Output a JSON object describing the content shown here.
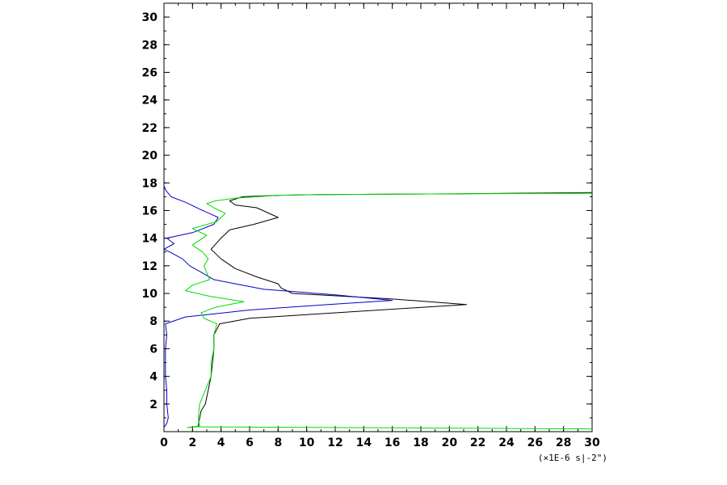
{
  "chart_data": {
    "type": "line",
    "title": "",
    "xlabel": "",
    "ylabel": "",
    "x_unit_label": "(×1E-6 s|-2\")",
    "xlim": [
      0,
      30
    ],
    "ylim": [
      0,
      31
    ],
    "grid": false,
    "x_ticks": [
      0,
      2,
      4,
      6,
      8,
      10,
      12,
      14,
      16,
      18,
      20,
      22,
      24,
      26,
      28,
      30
    ],
    "y_ticks": [
      2,
      4,
      6,
      8,
      10,
      12,
      14,
      16,
      18,
      20,
      22,
      24,
      26,
      28,
      30
    ],
    "series": [
      {
        "color": "#000000",
        "points": [
          [
            1.8,
            0.3
          ],
          [
            2.4,
            0.4
          ],
          [
            2.5,
            1.0
          ],
          [
            2.6,
            1.5
          ],
          [
            2.9,
            2.0
          ],
          [
            3.1,
            3.0
          ],
          [
            3.3,
            4.0
          ],
          [
            3.4,
            5.0
          ],
          [
            3.5,
            6.0
          ],
          [
            3.5,
            7.0
          ],
          [
            3.9,
            7.8
          ],
          [
            6.0,
            8.2
          ],
          [
            12.0,
            8.6
          ],
          [
            21.2,
            9.2
          ],
          [
            16.0,
            9.6
          ],
          [
            9.0,
            10.0
          ],
          [
            8.2,
            10.4
          ],
          [
            8.0,
            10.7
          ],
          [
            6.5,
            11.2
          ],
          [
            5.0,
            11.8
          ],
          [
            4.0,
            12.5
          ],
          [
            3.3,
            13.2
          ],
          [
            3.9,
            13.9
          ],
          [
            4.6,
            14.6
          ],
          [
            6.3,
            15.0
          ],
          [
            8.0,
            15.5
          ],
          [
            6.5,
            16.2
          ],
          [
            5.0,
            16.4
          ],
          [
            4.6,
            16.7
          ],
          [
            5.5,
            17.0
          ],
          [
            8.0,
            17.1
          ],
          [
            11.0,
            17.15
          ],
          [
            20.0,
            17.2
          ],
          [
            30.0,
            17.3
          ]
        ]
      },
      {
        "color": "#0000cc",
        "points": [
          [
            0.0,
            0.3
          ],
          [
            0.2,
            0.6
          ],
          [
            0.3,
            1.0
          ],
          [
            0.2,
            2.0
          ],
          [
            0.2,
            3.0
          ],
          [
            0.1,
            4.0
          ],
          [
            0.1,
            5.0
          ],
          [
            0.1,
            6.0
          ],
          [
            0.2,
            7.0
          ],
          [
            0.1,
            7.8
          ],
          [
            1.5,
            8.3
          ],
          [
            6.0,
            8.8
          ],
          [
            11.5,
            9.2
          ],
          [
            16.0,
            9.5
          ],
          [
            12.0,
            9.9
          ],
          [
            7.0,
            10.3
          ],
          [
            5.0,
            10.7
          ],
          [
            3.5,
            11.0
          ],
          [
            3.0,
            11.3
          ],
          [
            1.8,
            12.0
          ],
          [
            1.3,
            12.5
          ],
          [
            0.4,
            13.0
          ],
          [
            0.0,
            13.2
          ],
          [
            0.7,
            13.6
          ],
          [
            0.2,
            14.0
          ],
          [
            2.0,
            14.4
          ],
          [
            3.5,
            15.0
          ],
          [
            3.8,
            15.5
          ],
          [
            2.5,
            16.1
          ],
          [
            1.5,
            16.6
          ],
          [
            0.5,
            17.0
          ],
          [
            0.1,
            17.5
          ],
          [
            0.0,
            17.8
          ]
        ]
      },
      {
        "color": "#00dd00",
        "points": [
          [
            1.6,
            0.3
          ],
          [
            2.5,
            0.4
          ],
          [
            2.4,
            1.0
          ],
          [
            2.5,
            2.0
          ],
          [
            2.9,
            3.0
          ],
          [
            3.3,
            4.0
          ],
          [
            3.3,
            5.0
          ],
          [
            3.5,
            6.0
          ],
          [
            3.5,
            7.0
          ],
          [
            3.7,
            7.8
          ],
          [
            2.8,
            8.2
          ],
          [
            2.6,
            8.6
          ],
          [
            3.6,
            9.0
          ],
          [
            5.6,
            9.4
          ],
          [
            3.2,
            9.8
          ],
          [
            1.5,
            10.2
          ],
          [
            2.0,
            10.6
          ],
          [
            3.2,
            11.0
          ],
          [
            3.0,
            11.5
          ],
          [
            2.8,
            12.0
          ],
          [
            3.1,
            12.5
          ],
          [
            2.7,
            13.0
          ],
          [
            2.0,
            13.5
          ],
          [
            3.0,
            14.2
          ],
          [
            2.0,
            14.7
          ],
          [
            3.7,
            15.2
          ],
          [
            4.3,
            15.8
          ],
          [
            3.5,
            16.2
          ],
          [
            3.0,
            16.5
          ],
          [
            3.6,
            16.7
          ],
          [
            5.0,
            16.9
          ],
          [
            8.0,
            17.1
          ],
          [
            11.0,
            17.15
          ],
          [
            20.0,
            17.2
          ],
          [
            30.0,
            17.25
          ]
        ]
      },
      {
        "color": "#00dd00",
        "points": [
          [
            2.0,
            0.35
          ],
          [
            30.0,
            0.2
          ]
        ]
      }
    ]
  }
}
